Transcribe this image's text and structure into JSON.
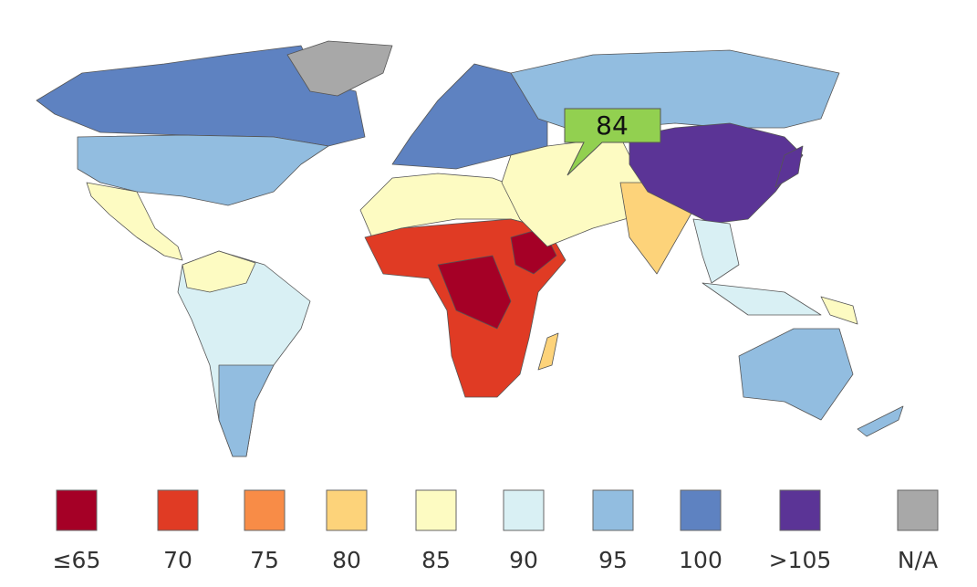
{
  "map": {
    "callout": {
      "value": 84
    },
    "legend": {
      "items": [
        {
          "label": "≤65",
          "color": "#a50026"
        },
        {
          "label": "70",
          "color": "#e03b24"
        },
        {
          "label": "75",
          "color": "#f88c47"
        },
        {
          "label": "80",
          "color": "#fdd37a"
        },
        {
          "label": "85",
          "color": "#fdfbc2"
        },
        {
          "label": "90",
          "color": "#d9f0f4"
        },
        {
          "label": "95",
          "color": "#92bde0"
        },
        {
          "label": "100",
          "color": "#5e82c1"
        },
        {
          "label": ">105",
          "color": "#5b3496"
        },
        {
          "label": "N/A",
          "color": "#a8a8a8"
        }
      ]
    }
  }
}
